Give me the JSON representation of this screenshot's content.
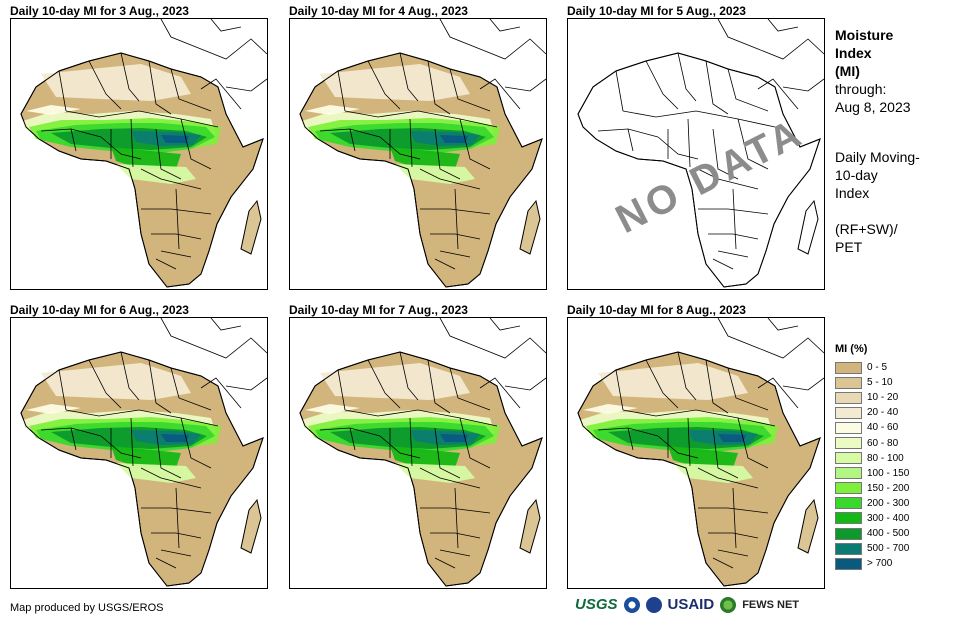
{
  "panels": [
    {
      "title": "Daily 10-day MI for 3 Aug., 2023",
      "has_data": true
    },
    {
      "title": "Daily 10-day MI for 4 Aug., 2023",
      "has_data": true
    },
    {
      "title": "Daily 10-day MI for 5 Aug., 2023",
      "has_data": false
    },
    {
      "title": "Daily 10-day MI for 6 Aug., 2023",
      "has_data": true
    },
    {
      "title": "Daily 10-day MI for 7 Aug., 2023",
      "has_data": true
    },
    {
      "title": "Daily 10-day MI for 8 Aug., 2023",
      "has_data": true
    }
  ],
  "no_data_label": "NO DATA",
  "side_info": {
    "title_lines": [
      "Moisture",
      "Index",
      "(MI)"
    ],
    "through_label": "through:",
    "through_date": "Aug 8, 2023",
    "desc_lines": [
      "Daily Moving-",
      "10-day",
      "Index"
    ],
    "formula_lines": [
      "(RF+SW)/",
      "PET"
    ]
  },
  "legend": {
    "title": "MI (%)",
    "items": [
      {
        "label": "0 - 5",
        "color": "#d2b57c"
      },
      {
        "label": "5 - 10",
        "color": "#dcc594"
      },
      {
        "label": "10 - 20",
        "color": "#e8d8b4"
      },
      {
        "label": "20 - 40",
        "color": "#f3ead2"
      },
      {
        "label": "40 - 60",
        "color": "#fcfce4"
      },
      {
        "label": "60 - 80",
        "color": "#ecfbc4"
      },
      {
        "label": "80 - 100",
        "color": "#d6fba4"
      },
      {
        "label": "100 - 150",
        "color": "#b4f684"
      },
      {
        "label": "150 - 200",
        "color": "#7ef03c"
      },
      {
        "label": "200 - 300",
        "color": "#3ad82c"
      },
      {
        "label": "300 - 400",
        "color": "#14b814"
      },
      {
        "label": "400 - 500",
        "color": "#0c9a2c"
      },
      {
        "label": "500 - 700",
        "color": "#0c7c72"
      },
      {
        "label": "> 700",
        "color": "#0a5a80"
      }
    ]
  },
  "credit": "Map produced by USGS/EROS",
  "logos": {
    "usgs": "USGS",
    "usaid": "USAID",
    "fews": "FEWS NET"
  }
}
